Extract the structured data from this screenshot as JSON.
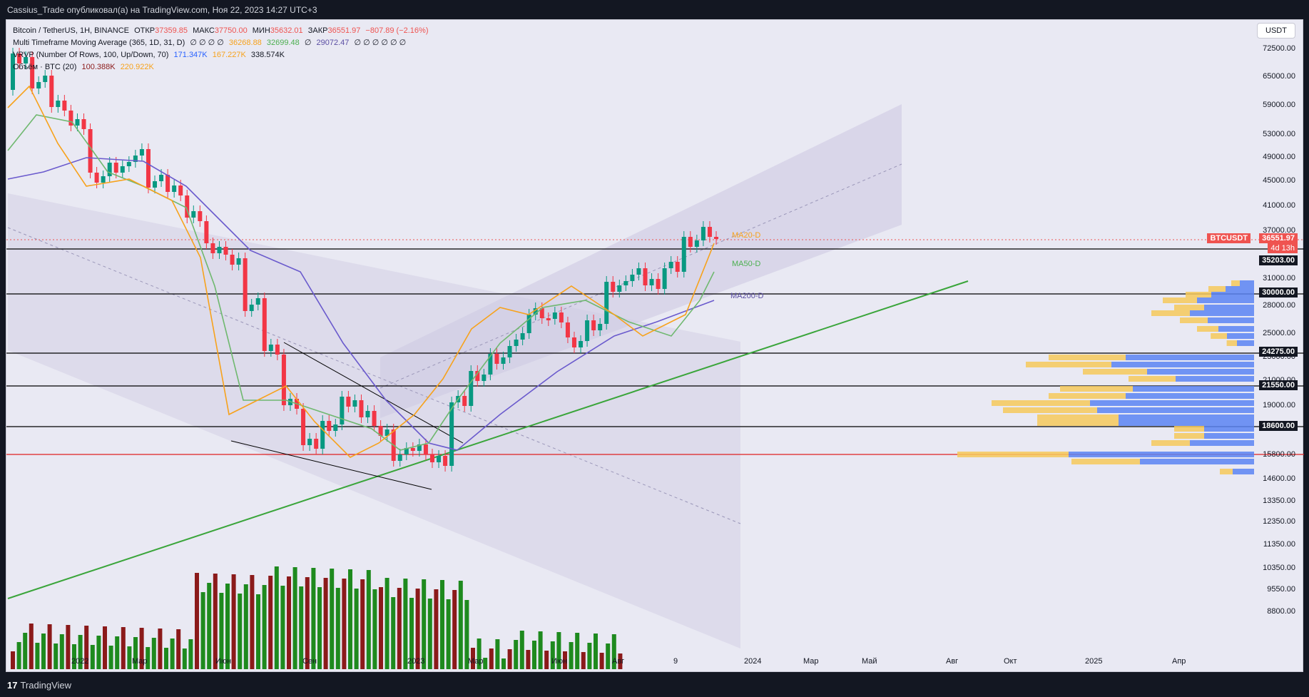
{
  "header": {
    "title": "Cassius_Trade опубликовал(а) на TradingView.com, Ноя 22, 2023 14:27 UTC+3"
  },
  "legend": {
    "symbol": "Bitcoin / TetherUS, 1H, BINANCE",
    "open_label": "ОТКР",
    "open_value": "37359.85",
    "high_label": "МАКС",
    "high_value": "37750.00",
    "low_label": "МИН",
    "low_value": "35632.01",
    "close_label": "ЗАКР",
    "close_value": "36551.97",
    "change": "−807.89 (−2.16%)",
    "ma_title": "Multi Timeframe Moving Average (365, 1D, 31, D)",
    "ma_zeros1": "∅ ∅ ∅ ∅",
    "ma_v1": "36268.88",
    "ma_v2": "32699.48",
    "ma_zero2": "∅",
    "ma_v3": "29072.47",
    "ma_zeros3": "∅ ∅ ∅ ∅ ∅ ∅",
    "vrvp_title": "VRVP (Number Of Rows, 100, Up/Down, 70)",
    "vrvp_v1": "171.347K",
    "vrvp_v2": "167.227K",
    "vrvp_v3": "338.574K",
    "vol_title": "Объём · BTC (20)",
    "vol_v1": "100.388K",
    "vol_v2": "220.922K"
  },
  "currency_button": "USDT",
  "ma_labels": {
    "ma20": "MA20-D",
    "ma50": "MA50-D",
    "ma200": "MA200-D"
  },
  "price_axis": [
    "72500.00",
    "65000.00",
    "59000.00",
    "53000.00",
    "49000.00",
    "45000.00",
    "41000.00",
    "37000.00",
    "31000.00",
    "28000.00",
    "25000.00",
    "23000.00",
    "21000.00",
    "19000.00",
    "17400.00",
    "15800.00",
    "14600.00",
    "13350.00",
    "12350.00",
    "11350.00",
    "10350.00",
    "9550.00",
    "8800.00"
  ],
  "price_tags": {
    "symbol": "BTCUSDT",
    "last": "36551.97",
    "countdown": "4d 13h",
    "l1": "35203.00",
    "l2": "30000.00",
    "l3": "24275.00",
    "l4": "21550.00",
    "l5": "18600.00"
  },
  "time_axis": [
    "2022",
    "Мар",
    "Июн",
    "Сен",
    "2023",
    "Мар",
    "Июн",
    "Авг",
    "9",
    "2024",
    "Мар",
    "Май",
    "Авг",
    "Окт",
    "2025",
    "Апр"
  ],
  "footer": {
    "brand": "TradingView"
  },
  "colors": {
    "up": "#089981",
    "down": "#f23645",
    "vol_up": "#1e8a1e",
    "vol_down": "#8b1a1a",
    "ma20": "#f7a21b",
    "ma50": "#6fb86f",
    "ma200": "#6a5acd",
    "trend": "#3aa53a"
  }
}
